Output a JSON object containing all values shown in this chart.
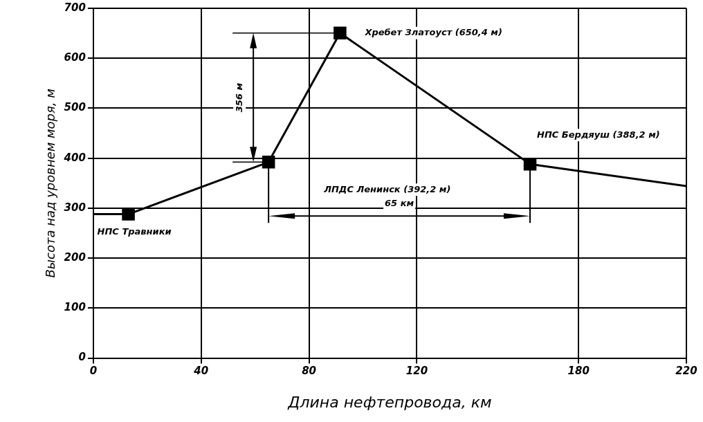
{
  "chart_data": {
    "type": "line",
    "xlabel": "Длина нефтепровода, км",
    "ylabel": "Высота над уровнем моря, м",
    "x": [
      0,
      13,
      65,
      91.5,
      162,
      220
    ],
    "series": [
      {
        "color": "#000000",
        "values": [
          288,
          288,
          392.2,
          650.4,
          388.2,
          344
        ]
      }
    ],
    "xlim": [
      0,
      220
    ],
    "xticks": [
      0,
      40,
      80,
      120,
      180,
      220
    ],
    "ylim": [
      0,
      700
    ],
    "yticks": [
      0,
      100,
      200,
      300,
      400,
      500,
      600,
      700
    ],
    "grid": true,
    "legend": false,
    "marker": "square",
    "line_style": "solid",
    "annotations": [
      "НПС Травники",
      "ЛПДС Ленинск (392,2 м)",
      "Хребет Златоуст (650,4 м)",
      "НПС Бердяуш (388,2 м)",
      "356 м",
      "65 км"
    ]
  }
}
